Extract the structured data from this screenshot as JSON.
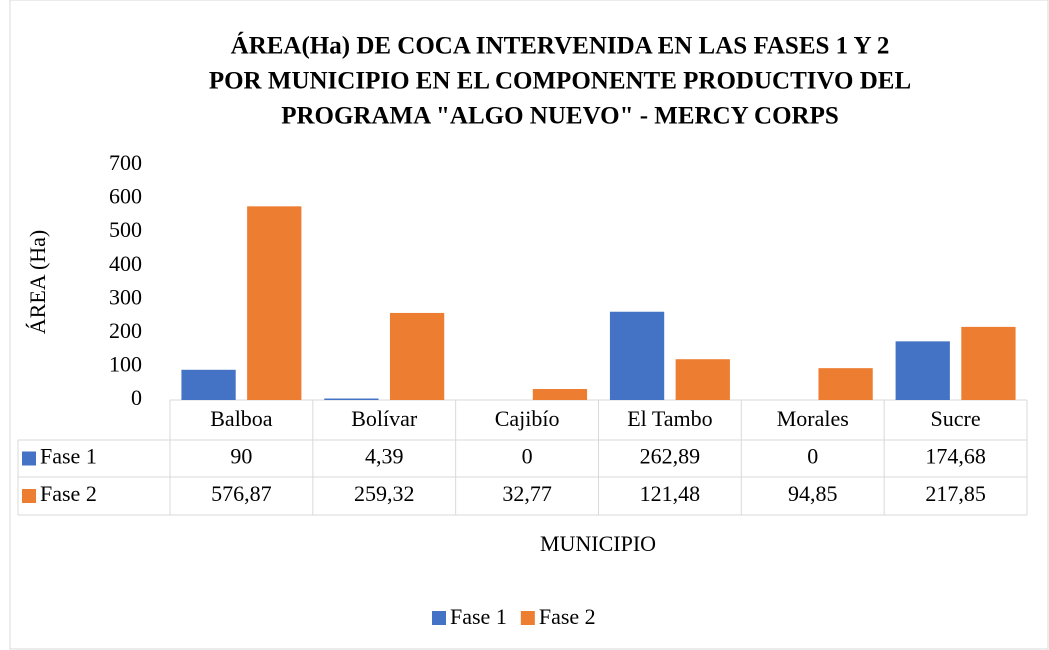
{
  "chart_data": {
    "type": "bar",
    "title": [
      "ÁREA(Ha) DE COCA INTERVENIDA EN LAS FASES 1 Y 2",
      "POR MUNICIPIO EN EL COMPONENTE PRODUCTIVO DEL",
      "PROGRAMA \"ALGO NUEVO\" - MERCY CORPS"
    ],
    "x_label": "MUNICIPIO",
    "y_label": "ÁREA (Ha)",
    "categories": [
      "Balboa",
      "Bolívar",
      "Cajibío",
      "El Tambo",
      "Morales",
      "Sucre"
    ],
    "series": [
      {
        "name": "Fase 1",
        "color": "#4472c4",
        "values": [
          90,
          4.39,
          0,
          262.89,
          0,
          174.68
        ],
        "value_labels": [
          "90",
          "4,39",
          "0",
          "262,89",
          "0",
          "174,68"
        ]
      },
      {
        "name": "Fase 2",
        "color": "#ed7d31",
        "values": [
          576.87,
          259.32,
          32.77,
          121.48,
          94.85,
          217.85
        ],
        "value_labels": [
          "576,87",
          "259,32",
          "32,77",
          "121,48",
          "94,85",
          "217,85"
        ]
      }
    ],
    "ylim": [
      0,
      700
    ],
    "yticks": [
      0,
      100,
      200,
      300,
      400,
      500,
      600,
      700
    ],
    "grid": false,
    "legend": "bottom"
  }
}
